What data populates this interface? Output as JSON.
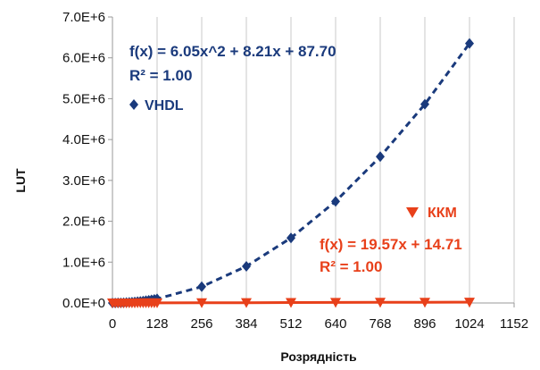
{
  "chart_data": {
    "type": "scatter",
    "xlabel": "Розрядність",
    "ylabel": "LUT",
    "xlim": [
      0,
      1152
    ],
    "ylim": [
      0,
      7000000
    ],
    "x_ticks": [
      0,
      128,
      256,
      384,
      512,
      640,
      768,
      896,
      1024,
      1152
    ],
    "x_tick_labels": [
      "0",
      "128",
      "256",
      "384",
      "512",
      "640",
      "768",
      "896",
      "1024",
      "1152"
    ],
    "y_ticks": [
      0,
      1000000,
      2000000,
      3000000,
      4000000,
      5000000,
      6000000,
      7000000
    ],
    "y_tick_labels": [
      "0.0E+0",
      "1.0E+6",
      "2.0E+6",
      "3.0E+6",
      "4.0E+6",
      "5.0E+6",
      "6.0E+6",
      "7.0E+6"
    ],
    "grid": "vertical",
    "series": [
      {
        "name": "VHDL",
        "marker": "diamond",
        "color": "#1a3a7c",
        "x": [
          0,
          8,
          16,
          24,
          32,
          40,
          48,
          56,
          64,
          72,
          80,
          88,
          96,
          104,
          112,
          120,
          128,
          256,
          384,
          512,
          640,
          768,
          896,
          1024
        ],
        "y": [
          88,
          540,
          1770,
          3770,
          6550,
          10100,
          14400,
          19500,
          25400,
          32000,
          39400,
          47600,
          56600,
          66400,
          76900,
          88200,
          100200,
          398700,
          895800,
          1592100,
          2486100,
          3580700,
          4864100,
          6352000
        ],
        "trendline": {
          "type": "poly2",
          "equation": "f(x) = 6.05x^2 + 8.21x + 87.70",
          "r2": "R² = 1.00"
        }
      },
      {
        "name": "ККМ",
        "marker": "triangle-down",
        "color": "#e8401a",
        "x": [
          0,
          8,
          16,
          24,
          32,
          40,
          48,
          56,
          64,
          72,
          80,
          88,
          96,
          104,
          112,
          120,
          128,
          256,
          384,
          512,
          640,
          768,
          896,
          1024
        ],
        "y": [
          15,
          171,
          328,
          484,
          641,
          797,
          954,
          1110,
          1267,
          1424,
          1580,
          1737,
          1893,
          2050,
          2206,
          2363,
          2520,
          5025,
          7529,
          10034,
          12539,
          15044,
          17549,
          20054
        ],
        "trendline": {
          "type": "linear",
          "equation": "f(x) = 19.57x + 14.71",
          "r2": "R² = 1.00"
        }
      }
    ]
  }
}
